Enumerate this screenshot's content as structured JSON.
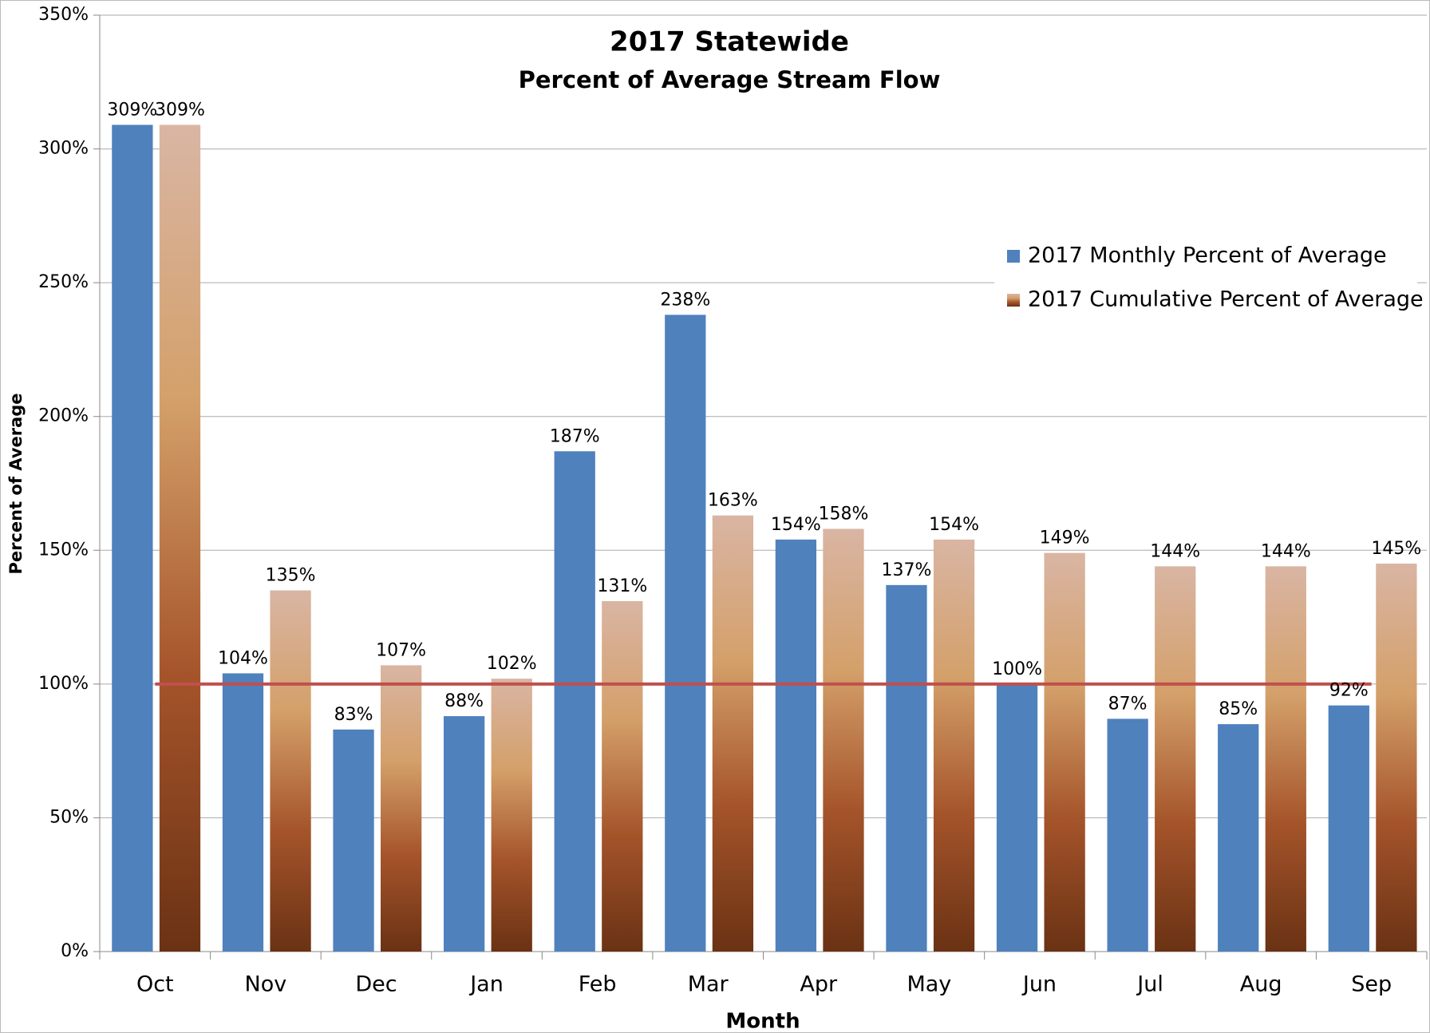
{
  "chart_data": {
    "type": "bar",
    "title": "2017 Statewide",
    "subtitle": "Percent of Average Stream Flow",
    "x_label": "Month",
    "y_label": "Percent of Average",
    "categories": [
      "Oct",
      "Nov",
      "Dec",
      "Jan",
      "Feb",
      "Mar",
      "Apr",
      "May",
      "Jun",
      "Jul",
      "Aug",
      "Sep"
    ],
    "series": [
      {
        "name": "2017 Monthly Percent of Average",
        "color": "#4f81bd",
        "values": [
          309,
          104,
          83,
          88,
          187,
          238,
          154,
          137,
          100,
          87,
          85,
          92
        ],
        "value_labels": [
          "309%",
          "104%",
          "83%",
          "88%",
          "187%",
          "238%",
          "154%",
          "137%",
          "100%",
          "87%",
          "85%",
          "92%"
        ]
      },
      {
        "name": "2017 Cumulative Percent of Average",
        "color": "#d4a06a",
        "gradient": [
          "#d9b5a3",
          "#d4a06a",
          "#a5542a",
          "#6a3214"
        ],
        "values": [
          309,
          135,
          107,
          102,
          131,
          163,
          158,
          154,
          149,
          144,
          144,
          145
        ],
        "value_labels": [
          "309%",
          "135%",
          "107%",
          "102%",
          "131%",
          "163%",
          "158%",
          "154%",
          "149%",
          "144%",
          "144%",
          "145%"
        ]
      }
    ],
    "reference_line": {
      "value": 100,
      "color": "#c0504d"
    },
    "ylim": [
      0,
      350
    ],
    "yticks": [
      {
        "value": 0,
        "label": "0%"
      },
      {
        "value": 50,
        "label": "50%"
      },
      {
        "value": 100,
        "label": "100%"
      },
      {
        "value": 150,
        "label": "150%"
      },
      {
        "value": 200,
        "label": "200%"
      },
      {
        "value": 250,
        "label": "250%"
      },
      {
        "value": 300,
        "label": "300%"
      },
      {
        "value": 350,
        "label": "350%"
      }
    ],
    "grid": true,
    "legend": "upper right"
  }
}
